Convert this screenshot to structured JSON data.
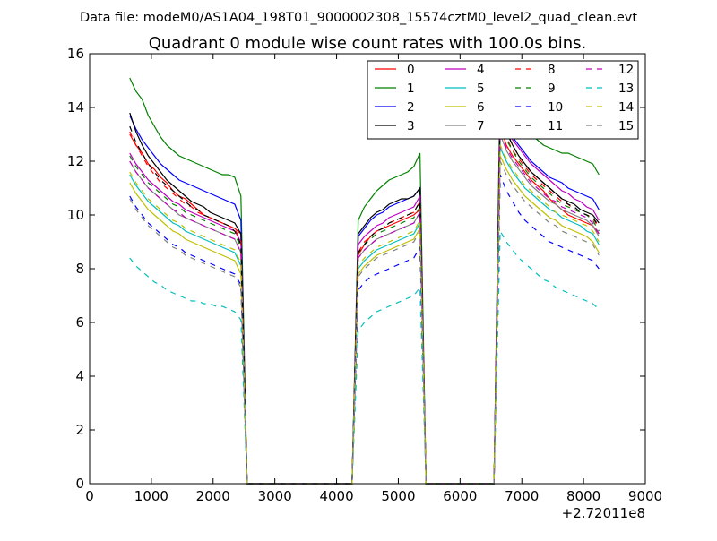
{
  "figure": {
    "suptitle": "Data file: modeM0/AS1A04_198T01_9000002308_15574cztM0_level2_quad_clean.evt",
    "offset_label": "+2.72011e8"
  },
  "chart_data": {
    "type": "line",
    "title": "Quadrant 0 module wise count rates with 100.0s bins.",
    "xlabel": "",
    "ylabel": "",
    "xlim": [
      0,
      9000
    ],
    "ylim": [
      0,
      16
    ],
    "xticks": [
      0,
      1000,
      2000,
      3000,
      4000,
      5000,
      6000,
      7000,
      8000,
      9000
    ],
    "yticks": [
      0,
      2,
      4,
      6,
      8,
      10,
      12,
      14,
      16
    ],
    "x_offset": 272011000,
    "legend_position": "top-right",
    "legend_columns": 4,
    "segment_starts": [
      650,
      4350,
      6650
    ],
    "segment_lengths": [
      19,
      11,
      17
    ],
    "series": [
      {
        "name": "0",
        "color": "#ff0000",
        "dash": "solid",
        "values": [
          13.0,
          12.6,
          12.3,
          11.9,
          11.7,
          11.4,
          11.2,
          10.9,
          10.7,
          10.6,
          10.4,
          10.2,
          10.0,
          9.9,
          9.8,
          9.7,
          9.6,
          9.5,
          9.3,
          8.5,
          8.9,
          9.2,
          9.4,
          9.5,
          9.6,
          9.7,
          9.8,
          9.9,
          10.0,
          10.2,
          13.3,
          12.6,
          12.2,
          11.9,
          11.6,
          11.3,
          11.1,
          10.9,
          10.6,
          10.4,
          10.2,
          10.0,
          9.9,
          9.8,
          9.7,
          9.6,
          9.3
        ]
      },
      {
        "name": "1",
        "color": "#008000",
        "dash": "solid",
        "values": [
          15.1,
          14.6,
          14.3,
          13.7,
          13.3,
          12.9,
          12.6,
          12.4,
          12.2,
          12.1,
          12.0,
          11.9,
          11.8,
          11.7,
          11.6,
          11.5,
          11.5,
          11.4,
          10.7,
          9.8,
          10.3,
          10.6,
          10.9,
          11.1,
          11.3,
          11.4,
          11.5,
          11.6,
          11.8,
          12.3,
          15.1,
          14.5,
          14.0,
          13.6,
          13.3,
          13.0,
          12.8,
          12.6,
          12.5,
          12.4,
          12.3,
          12.3,
          12.2,
          12.1,
          12.0,
          11.9,
          11.5
        ]
      },
      {
        "name": "2",
        "color": "#0000ff",
        "dash": "solid",
        "values": [
          13.7,
          13.2,
          12.8,
          12.5,
          12.2,
          11.9,
          11.7,
          11.5,
          11.3,
          11.2,
          11.1,
          11.0,
          10.9,
          10.8,
          10.7,
          10.6,
          10.5,
          10.4,
          9.8,
          9.2,
          9.5,
          9.8,
          10.0,
          10.1,
          10.3,
          10.4,
          10.5,
          10.6,
          10.7,
          11.0,
          14.0,
          13.4,
          12.9,
          12.6,
          12.3,
          12.0,
          11.8,
          11.6,
          11.4,
          11.3,
          11.2,
          11.0,
          10.9,
          10.8,
          10.7,
          10.6,
          10.2
        ]
      },
      {
        "name": "3",
        "color": "#000000",
        "dash": "solid",
        "values": [
          13.8,
          13.1,
          12.6,
          12.2,
          11.9,
          11.6,
          11.3,
          11.1,
          10.9,
          10.7,
          10.5,
          10.4,
          10.3,
          10.1,
          10.0,
          9.9,
          9.8,
          9.7,
          9.3,
          9.3,
          9.6,
          9.9,
          10.1,
          10.2,
          10.4,
          10.5,
          10.6,
          10.6,
          10.7,
          11.0,
          13.8,
          13.1,
          12.6,
          12.2,
          11.9,
          11.6,
          11.4,
          11.2,
          11.0,
          10.8,
          10.6,
          10.5,
          10.4,
          10.2,
          10.1,
          10.0,
          9.7
        ]
      },
      {
        "name": "4",
        "color": "#bf00bf",
        "dash": "solid",
        "values": [
          12.3,
          11.9,
          11.6,
          11.3,
          11.1,
          10.9,
          10.7,
          10.5,
          10.4,
          10.2,
          10.1,
          10.0,
          9.9,
          9.8,
          9.7,
          9.6,
          9.5,
          9.4,
          9.0,
          8.9,
          9.2,
          9.4,
          9.6,
          9.7,
          9.9,
          10.0,
          10.1,
          10.2,
          10.3,
          10.7,
          13.8,
          13.2,
          12.8,
          12.5,
          12.2,
          11.9,
          11.7,
          11.5,
          11.3,
          11.1,
          10.9,
          10.8,
          10.6,
          10.5,
          10.3,
          10.2,
          9.8
        ]
      },
      {
        "name": "5",
        "color": "#00bfbf",
        "dash": "solid",
        "values": [
          11.5,
          11.1,
          10.8,
          10.5,
          10.3,
          10.1,
          9.9,
          9.7,
          9.6,
          9.4,
          9.3,
          9.2,
          9.1,
          9.0,
          8.9,
          8.8,
          8.7,
          8.6,
          8.1,
          8.0,
          8.3,
          8.5,
          8.7,
          8.8,
          8.9,
          9.0,
          9.1,
          9.2,
          9.3,
          9.7,
          12.5,
          12.0,
          11.6,
          11.3,
          11.0,
          10.8,
          10.6,
          10.4,
          10.2,
          10.1,
          9.9,
          9.8,
          9.7,
          9.6,
          9.4,
          9.3,
          8.9
        ]
      },
      {
        "name": "6",
        "color": "#bfbf00",
        "dash": "solid",
        "values": [
          11.2,
          10.8,
          10.5,
          10.2,
          10.0,
          9.8,
          9.6,
          9.4,
          9.3,
          9.1,
          9.0,
          8.9,
          8.8,
          8.7,
          8.6,
          8.5,
          8.4,
          8.3,
          7.8,
          7.8,
          8.1,
          8.3,
          8.5,
          8.6,
          8.7,
          8.8,
          8.9,
          9.0,
          9.1,
          9.5,
          12.2,
          11.7,
          11.3,
          11.0,
          10.7,
          10.5,
          10.3,
          10.1,
          9.9,
          9.8,
          9.6,
          9.5,
          9.4,
          9.3,
          9.2,
          9.0,
          8.6
        ]
      },
      {
        "name": "7",
        "color": "#808080",
        "dash": "solid",
        "values": [
          12.0,
          11.6,
          11.3,
          11.0,
          10.8,
          10.6,
          10.4,
          10.2,
          10.0,
          9.9,
          9.8,
          9.7,
          9.6,
          9.5,
          9.4,
          9.3,
          9.2,
          9.1,
          8.6,
          8.4,
          8.7,
          8.9,
          9.1,
          9.2,
          9.3,
          9.4,
          9.5,
          9.6,
          9.7,
          10.1,
          13.0,
          12.4,
          12.0,
          11.7,
          11.4,
          11.1,
          10.9,
          10.7,
          10.5,
          10.4,
          10.2,
          10.1,
          10.0,
          9.9,
          9.8,
          9.6,
          9.2
        ]
      },
      {
        "name": "8",
        "color": "#ff0000",
        "dash": "dashed",
        "values": [
          13.1,
          12.6,
          12.2,
          11.8,
          11.5,
          11.2,
          11.0,
          10.8,
          10.6,
          10.4,
          10.3,
          10.1,
          10.0,
          9.9,
          9.8,
          9.7,
          9.6,
          9.5,
          9.0,
          8.6,
          9.0,
          9.2,
          9.4,
          9.5,
          9.7,
          9.8,
          9.9,
          10.0,
          10.1,
          10.5,
          13.5,
          12.9,
          12.4,
          12.1,
          11.8,
          11.5,
          11.3,
          11.1,
          10.9,
          10.7,
          10.5,
          10.4,
          10.2,
          10.1,
          10.0,
          9.9,
          9.5
        ]
      },
      {
        "name": "9",
        "color": "#008000",
        "dash": "dashed",
        "values": [
          12.2,
          11.8,
          11.5,
          11.2,
          11.0,
          10.8,
          10.6,
          10.4,
          10.3,
          10.1,
          10.0,
          9.9,
          9.8,
          9.7,
          9.6,
          9.5,
          9.4,
          9.3,
          8.8,
          8.6,
          8.9,
          9.1,
          9.3,
          9.4,
          9.5,
          9.6,
          9.7,
          9.8,
          9.9,
          10.3,
          13.4,
          12.8,
          12.4,
          12.0,
          11.7,
          11.4,
          11.2,
          11.0,
          10.8,
          10.6,
          10.4,
          10.3,
          10.2,
          10.1,
          10.0,
          9.8,
          9.4
        ]
      },
      {
        "name": "10",
        "color": "#0000ff",
        "dash": "dashed",
        "values": [
          10.7,
          10.3,
          10.0,
          9.7,
          9.5,
          9.3,
          9.1,
          8.9,
          8.8,
          8.6,
          8.5,
          8.4,
          8.3,
          8.2,
          8.1,
          8.0,
          7.9,
          7.8,
          7.4,
          7.2,
          7.5,
          7.7,
          7.8,
          7.9,
          8.0,
          8.1,
          8.2,
          8.3,
          8.4,
          8.8,
          11.5,
          10.9,
          10.5,
          10.1,
          9.8,
          9.6,
          9.4,
          9.2,
          9.0,
          8.9,
          8.8,
          8.7,
          8.6,
          8.5,
          8.4,
          8.3,
          8.0
        ]
      },
      {
        "name": "11",
        "color": "#000000",
        "dash": "dashed",
        "values": [
          13.3,
          12.7,
          12.3,
          11.9,
          11.6,
          11.3,
          11.1,
          10.9,
          10.7,
          10.5,
          10.3,
          10.2,
          10.0,
          9.9,
          9.8,
          9.7,
          9.6,
          9.4,
          8.9,
          8.6,
          8.9,
          9.2,
          9.4,
          9.5,
          9.7,
          9.8,
          9.9,
          10.0,
          10.1,
          10.5,
          13.7,
          13.1,
          12.6,
          12.2,
          11.9,
          11.6,
          11.4,
          11.2,
          11.0,
          10.8,
          10.6,
          10.4,
          10.3,
          10.1,
          10.0,
          9.9,
          9.6
        ]
      },
      {
        "name": "12",
        "color": "#bf00bf",
        "dash": "dashed",
        "values": [
          12.0,
          11.6,
          11.3,
          11.0,
          10.8,
          10.6,
          10.4,
          10.2,
          10.1,
          9.9,
          9.8,
          9.7,
          9.6,
          9.5,
          9.4,
          9.3,
          9.2,
          9.1,
          8.6,
          8.4,
          8.7,
          8.9,
          9.1,
          9.2,
          9.3,
          9.4,
          9.5,
          9.6,
          9.7,
          10.1,
          13.1,
          12.5,
          12.1,
          11.8,
          11.5,
          11.2,
          11.0,
          10.8,
          10.6,
          10.5,
          10.3,
          10.2,
          10.1,
          10.0,
          9.9,
          9.7,
          9.3
        ]
      },
      {
        "name": "13",
        "color": "#00bfbf",
        "dash": "dashed",
        "values": [
          8.4,
          8.1,
          7.9,
          7.7,
          7.5,
          7.4,
          7.2,
          7.1,
          7.0,
          6.9,
          6.8,
          6.8,
          6.7,
          6.7,
          6.6,
          6.6,
          6.5,
          6.4,
          6.1,
          5.7,
          6.0,
          6.2,
          6.4,
          6.5,
          6.6,
          6.7,
          6.8,
          6.9,
          7.0,
          7.3,
          9.4,
          9.0,
          8.7,
          8.4,
          8.2,
          8.0,
          7.8,
          7.6,
          7.5,
          7.3,
          7.2,
          7.1,
          7.0,
          6.9,
          6.8,
          6.7,
          6.5
        ]
      },
      {
        "name": "14",
        "color": "#bfbf00",
        "dash": "dashed",
        "values": [
          11.6,
          11.2,
          10.9,
          10.6,
          10.4,
          10.2,
          10.0,
          9.8,
          9.7,
          9.5,
          9.4,
          9.3,
          9.2,
          9.1,
          9.0,
          8.9,
          8.8,
          8.7,
          8.2,
          8.1,
          8.4,
          8.6,
          8.8,
          8.9,
          9.0,
          9.1,
          9.2,
          9.3,
          9.4,
          9.8,
          12.6,
          12.1,
          11.7,
          11.4,
          11.1,
          10.9,
          10.7,
          10.5,
          10.3,
          10.1,
          10.0,
          9.9,
          9.8,
          9.7,
          9.6,
          9.4,
          9.0
        ]
      },
      {
        "name": "15",
        "color": "#808080",
        "dash": "dashed",
        "values": [
          10.6,
          10.2,
          9.9,
          9.6,
          9.4,
          9.2,
          9.0,
          8.8,
          8.7,
          8.5,
          8.4,
          8.3,
          8.2,
          8.1,
          8.0,
          7.9,
          7.8,
          7.7,
          7.3,
          7.7,
          8.0,
          8.2,
          8.4,
          8.5,
          8.6,
          8.7,
          8.8,
          8.9,
          9.0,
          9.4,
          12.0,
          11.5,
          11.1,
          10.8,
          10.5,
          10.3,
          10.1,
          9.9,
          9.7,
          9.6,
          9.4,
          9.3,
          9.2,
          9.1,
          9.0,
          8.9,
          8.5
        ]
      }
    ]
  }
}
